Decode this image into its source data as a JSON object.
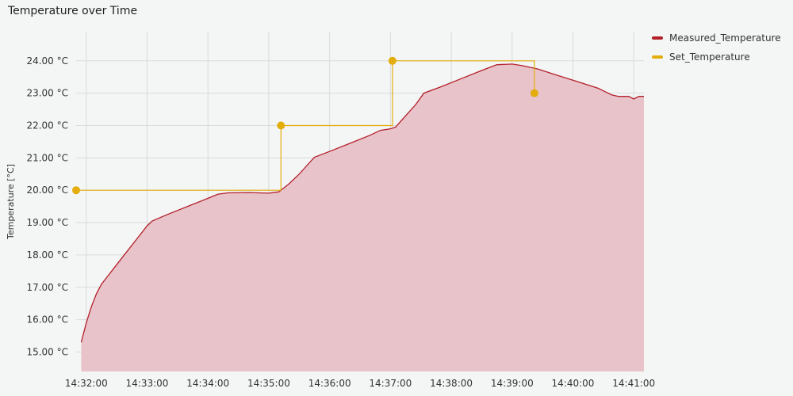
{
  "chart_data": {
    "type": "line",
    "title": "Temperature over Time",
    "xlabel": "",
    "ylabel": "Temperature [°C]",
    "x_ticks": [
      "14:32:00",
      "14:33:00",
      "14:34:00",
      "14:35:00",
      "14:36:00",
      "14:37:00",
      "14:38:00",
      "14:39:00",
      "14:40:00",
      "14:41:00"
    ],
    "y_ticks": [
      "15.00 °C",
      "16.00 °C",
      "17.00 °C",
      "18.00 °C",
      "19.00 °C",
      "20.00 °C",
      "21.00 °C",
      "22.00 °C",
      "23.00 °C",
      "24.00 °C"
    ],
    "xlim": [
      "14:31:50",
      "14:41:10"
    ],
    "ylim": [
      14.4,
      24.9
    ],
    "grid": true,
    "legend_position": "top-right",
    "series": [
      {
        "name": "Measured_Temperature",
        "color": "#b3202a",
        "fill": "#e8c3c9",
        "style": "area",
        "points": [
          [
            "14:31:55",
            15.3
          ],
          [
            "14:32:00",
            15.9
          ],
          [
            "14:32:05",
            16.4
          ],
          [
            "14:32:10",
            16.8
          ],
          [
            "14:32:15",
            17.1
          ],
          [
            "14:32:20",
            17.3
          ],
          [
            "14:32:30",
            17.7
          ],
          [
            "14:32:40",
            18.1
          ],
          [
            "14:32:50",
            18.5
          ],
          [
            "14:33:00",
            18.9
          ],
          [
            "14:33:05",
            19.05
          ],
          [
            "14:33:20",
            19.25
          ],
          [
            "14:33:40",
            19.5
          ],
          [
            "14:34:00",
            19.75
          ],
          [
            "14:34:10",
            19.88
          ],
          [
            "14:34:20",
            19.92
          ],
          [
            "14:34:40",
            19.93
          ],
          [
            "14:35:00",
            19.91
          ],
          [
            "14:35:10",
            19.95
          ],
          [
            "14:35:20",
            20.2
          ],
          [
            "14:35:30",
            20.5
          ],
          [
            "14:35:40",
            20.85
          ],
          [
            "14:35:45",
            21.02
          ],
          [
            "14:36:00",
            21.2
          ],
          [
            "14:36:20",
            21.45
          ],
          [
            "14:36:40",
            21.7
          ],
          [
            "14:36:50",
            21.85
          ],
          [
            "14:37:00",
            21.9
          ],
          [
            "14:37:05",
            21.95
          ],
          [
            "14:37:15",
            22.3
          ],
          [
            "14:37:25",
            22.65
          ],
          [
            "14:37:33",
            23.0
          ],
          [
            "14:37:50",
            23.2
          ],
          [
            "14:38:10",
            23.45
          ],
          [
            "14:38:30",
            23.7
          ],
          [
            "14:38:45",
            23.88
          ],
          [
            "14:39:00",
            23.9
          ],
          [
            "14:39:10",
            23.85
          ],
          [
            "14:39:25",
            23.75
          ],
          [
            "14:39:45",
            23.55
          ],
          [
            "14:40:05",
            23.35
          ],
          [
            "14:40:25",
            23.15
          ],
          [
            "14:40:38",
            22.95
          ],
          [
            "14:40:45",
            22.9
          ],
          [
            "14:40:55",
            22.9
          ],
          [
            "14:41:00",
            22.82
          ],
          [
            "14:41:05",
            22.9
          ],
          [
            "14:41:10",
            22.9
          ]
        ]
      },
      {
        "name": "Set_Temperature",
        "color": "#e3ad0b",
        "style": "step",
        "points": [
          [
            "14:31:50",
            20.0
          ],
          [
            "14:35:12",
            22.0
          ],
          [
            "14:37:02",
            24.0
          ],
          [
            "14:39:22",
            23.0
          ]
        ]
      }
    ]
  }
}
